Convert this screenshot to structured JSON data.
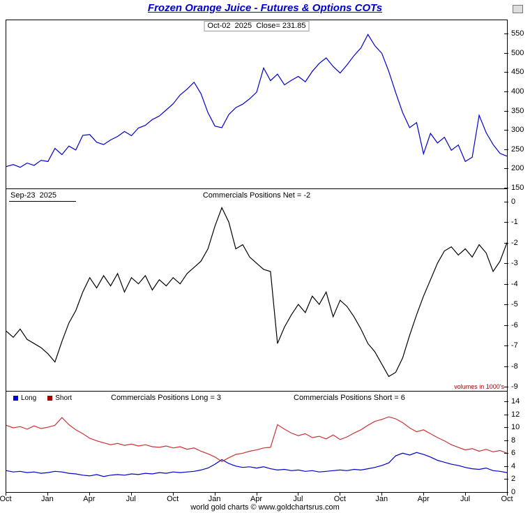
{
  "title": "Frozen Orange Juice - Futures & Options COTs",
  "footer": "world gold charts © www.goldchartsrus.com",
  "x_ticklabels": [
    "Oct",
    "Jan",
    "Apr",
    "Jul",
    "Oct",
    "Jan",
    "Apr",
    "Jul",
    "Oct",
    "Jan",
    "Apr",
    "Jul",
    "Oct"
  ],
  "x_range": [
    "Oct 2022",
    "Oct 2025"
  ],
  "colors": {
    "title": "#0000cc",
    "price_line": "#0000cc",
    "net_line": "#000000",
    "long_line": "#0000cc",
    "short_line": "#cc3333",
    "volumes_note": "#990000"
  },
  "chart_data": [
    {
      "type": "line",
      "panel": "price",
      "title": "Oct-02  2025  Close= 231.85",
      "close_date": "Oct-02 2025",
      "close_value": 231.85,
      "ylim": [
        148,
        585
      ],
      "yticks": [
        550,
        500,
        450,
        400,
        350,
        300,
        250,
        200,
        150
      ],
      "legend_position": "none",
      "grid": false,
      "series": [
        {
          "name": "Price",
          "color": "#0000cc",
          "values": [
            205,
            210,
            203,
            214,
            208,
            221,
            218,
            252,
            236,
            258,
            248,
            286,
            288,
            268,
            262,
            274,
            283,
            296,
            285,
            305,
            312,
            327,
            336,
            352,
            368,
            391,
            406,
            424,
            394,
            345,
            310,
            306,
            340,
            358,
            367,
            381,
            398,
            461,
            428,
            445,
            417,
            429,
            439,
            425,
            452,
            473,
            487,
            465,
            448,
            469,
            493,
            513,
            548,
            519,
            499,
            452,
            397,
            345,
            306,
            319,
            238,
            291,
            266,
            281,
            247,
            261,
            218,
            229,
            338,
            293,
            262,
            239,
            231.85
          ]
        }
      ]
    },
    {
      "type": "line",
      "panel": "commercials-net",
      "title": "Commercials Positions Net = -2",
      "net_value": -2,
      "annotation": "Sep-23  2025",
      "note": "volumes in 1000's",
      "ylim": [
        -9.2,
        0.6
      ],
      "yticks": [
        0,
        -1,
        -2,
        -3,
        -4,
        -5,
        -6,
        -7,
        -8,
        -9
      ],
      "grid": false,
      "series": [
        {
          "name": "Net",
          "color": "#000000",
          "values": [
            -6.3,
            -6.6,
            -6.2,
            -6.7,
            -6.9,
            -7.1,
            -7.4,
            -7.8,
            -6.8,
            -5.9,
            -5.3,
            -4.4,
            -3.7,
            -4.2,
            -3.6,
            -4.1,
            -3.5,
            -4.4,
            -3.7,
            -4.0,
            -3.6,
            -4.3,
            -3.8,
            -4.1,
            -3.7,
            -4.0,
            -3.5,
            -3.2,
            -2.9,
            -2.3,
            -1.2,
            -0.3,
            -1.0,
            -2.3,
            -2.1,
            -2.7,
            -3.0,
            -3.3,
            -3.4,
            -6.9,
            -6.1,
            -5.5,
            -5.0,
            -5.4,
            -4.6,
            -5.0,
            -4.4,
            -5.6,
            -4.8,
            -5.1,
            -5.6,
            -6.2,
            -6.9,
            -7.3,
            -7.9,
            -8.5,
            -8.3,
            -7.6,
            -6.5,
            -5.5,
            -4.6,
            -3.8,
            -3.0,
            -2.4,
            -2.2,
            -2.6,
            -2.3,
            -2.7,
            -2.1,
            -2.5,
            -3.4,
            -2.9,
            -2.0
          ]
        }
      ]
    },
    {
      "type": "line",
      "panel": "commercials-long-short",
      "long_label": "Commercials Positions Long = 3",
      "short_label": "Commercials Positions Short = 6",
      "long_value": 3,
      "short_value": 6,
      "legend": [
        "Long",
        "Short"
      ],
      "legend_position": "top-left",
      "ylim": [
        0,
        15.5
      ],
      "yticks": [
        14,
        12,
        10,
        8,
        6,
        4,
        2,
        0
      ],
      "grid": false,
      "series": [
        {
          "name": "Long",
          "color": "#0000cc",
          "values": [
            3.3,
            3.1,
            3.2,
            3.0,
            3.1,
            2.9,
            3.0,
            3.2,
            3.1,
            2.9,
            2.8,
            2.6,
            2.5,
            2.7,
            2.4,
            2.6,
            2.7,
            2.6,
            2.8,
            2.7,
            2.9,
            2.8,
            3.0,
            2.9,
            3.1,
            3.0,
            3.1,
            3.2,
            3.4,
            3.7,
            4.3,
            5.0,
            4.4,
            4.0,
            3.8,
            3.9,
            3.7,
            3.9,
            3.6,
            3.4,
            3.5,
            3.3,
            3.4,
            3.2,
            3.3,
            3.1,
            3.2,
            3.3,
            3.4,
            3.3,
            3.5,
            3.4,
            3.6,
            3.8,
            4.1,
            4.5,
            5.6,
            6.0,
            5.7,
            6.1,
            5.8,
            5.4,
            4.9,
            4.6,
            4.3,
            4.1,
            3.8,
            3.6,
            3.5,
            3.7,
            3.3,
            3.2,
            3.0
          ]
        },
        {
          "name": "Short",
          "color": "#cc3333",
          "values": [
            10.3,
            9.9,
            10.1,
            9.7,
            10.2,
            9.8,
            10.0,
            10.3,
            11.5,
            10.4,
            9.6,
            9.0,
            8.3,
            7.9,
            7.6,
            7.3,
            7.5,
            7.2,
            7.4,
            7.1,
            7.3,
            7.0,
            6.9,
            7.1,
            6.8,
            7.0,
            6.6,
            6.8,
            6.3,
            5.9,
            5.4,
            4.7,
            5.3,
            5.8,
            6.0,
            6.3,
            6.5,
            6.8,
            6.9,
            10.4,
            9.7,
            9.1,
            8.7,
            9.0,
            8.4,
            8.6,
            8.2,
            8.8,
            8.1,
            8.5,
            9.1,
            9.6,
            10.3,
            10.9,
            11.2,
            11.6,
            11.3,
            10.7,
            9.9,
            9.3,
            9.6,
            9.0,
            8.4,
            7.9,
            7.3,
            6.9,
            6.5,
            6.7,
            6.3,
            6.6,
            6.2,
            6.4,
            6.0
          ]
        }
      ]
    }
  ]
}
